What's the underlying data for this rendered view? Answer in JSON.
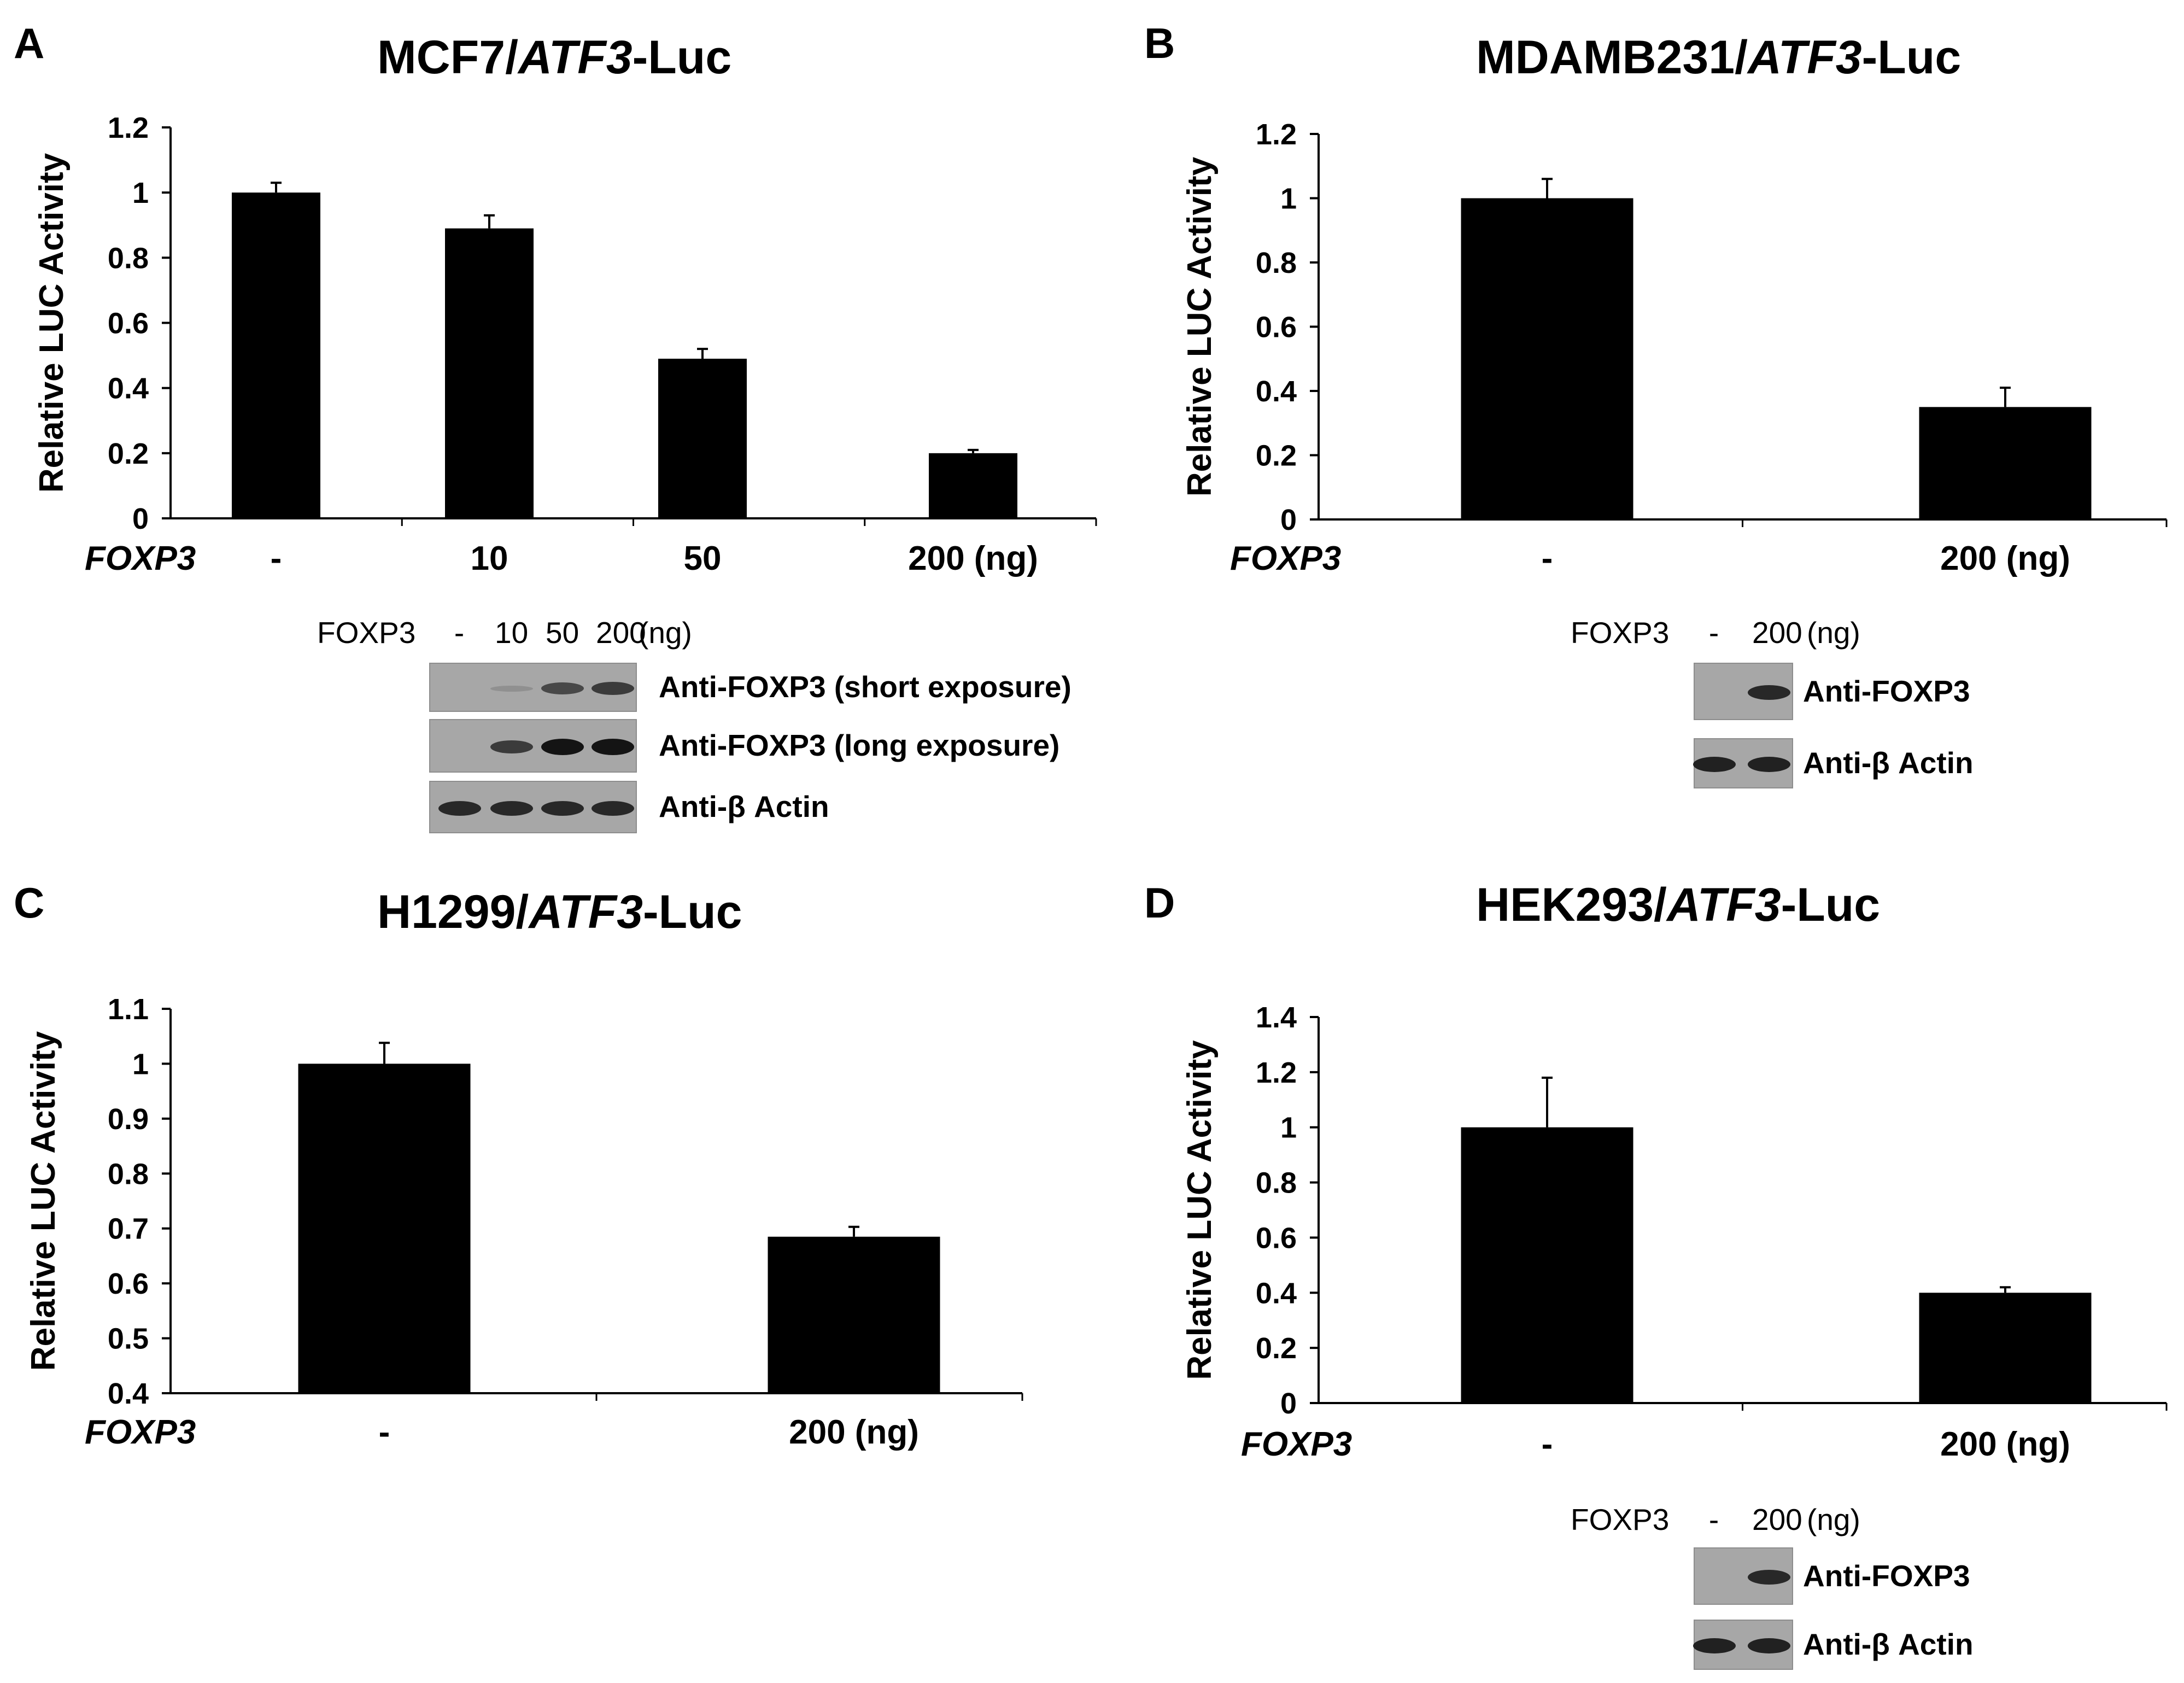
{
  "panels": [
    {
      "letter": "A",
      "title_prefix": "MCF7/",
      "title_italic": "ATF3",
      "title_suffix": "-Luc",
      "treatment_label": "FOXP3",
      "blot": {
        "header_label": "FOXP3",
        "lanes": [
          "-",
          "10",
          "50",
          "200"
        ],
        "unit": "(ng)",
        "strips": [
          {
            "label": "Anti-FOXP3 (short exposure)",
            "band_intensity": [
              0,
              0.05,
              0.6,
              0.7
            ]
          },
          {
            "label": "Anti-FOXP3 (long exposure)",
            "band_intensity": [
              0,
              0.7,
              1.0,
              1.0
            ]
          },
          {
            "label": "Anti-β Actin",
            "band_intensity": [
              0.85,
              0.85,
              0.85,
              0.85
            ]
          }
        ]
      }
    },
    {
      "letter": "B",
      "title_prefix": "MDAMB231/",
      "title_italic": "ATF3",
      "title_suffix": "-Luc",
      "treatment_label": "FOXP3",
      "blot": {
        "header_label": "FOXP3",
        "lanes": [
          "-",
          "200"
        ],
        "unit": "(ng)",
        "strips": [
          {
            "label": "Anti-FOXP3",
            "band_intensity": [
              0,
              0.85
            ]
          },
          {
            "label": "Anti-β Actin",
            "band_intensity": [
              0.9,
              0.9
            ]
          }
        ]
      }
    },
    {
      "letter": "C",
      "title_prefix": "H1299/",
      "title_italic": "ATF3",
      "title_suffix": "-Luc",
      "treatment_label": "FOXP3",
      "blot": null
    },
    {
      "letter": "D",
      "title_prefix": "HEK293/",
      "title_italic": "ATF3",
      "title_suffix": "-Luc",
      "treatment_label": "FOXP3",
      "blot": {
        "header_label": "FOXP3",
        "lanes": [
          "-",
          "200"
        ],
        "unit": "(ng)",
        "strips": [
          {
            "label": "Anti-FOXP3",
            "band_intensity": [
              0,
              0.85
            ]
          },
          {
            "label": "Anti-β Actin",
            "band_intensity": [
              0.9,
              0.9
            ]
          }
        ]
      }
    }
  ],
  "chart_data": [
    {
      "type": "bar",
      "title": "MCF7/ATF3-Luc",
      "ylabel": "Relative LUC Activity",
      "xlabel": "FOXP3",
      "categories": [
        "-",
        "10",
        "50",
        "200 (ng)"
      ],
      "values": [
        1.0,
        0.89,
        0.49,
        0.2
      ],
      "errors": [
        0.03,
        0.04,
        0.03,
        0.01
      ],
      "ylim": [
        0,
        1.2
      ],
      "yticks": [
        "0",
        "0.2",
        "0.4",
        "0.6",
        "0.8",
        "1",
        "1.2"
      ],
      "bar_color": "#000000"
    },
    {
      "type": "bar",
      "title": "MDAMB231/ATF3-Luc",
      "ylabel": "Relative LUC Activity",
      "xlabel": "FOXP3",
      "categories": [
        "-",
        "200 (ng)"
      ],
      "values": [
        1.0,
        0.35
      ],
      "errors": [
        0.06,
        0.06
      ],
      "ylim": [
        0,
        1.2
      ],
      "yticks": [
        "0",
        "0.2",
        "0.4",
        "0.6",
        "0.8",
        "1",
        "1.2"
      ],
      "bar_color": "#000000"
    },
    {
      "type": "bar",
      "title": "H1299/ATF3-Luc",
      "ylabel": "Relative LUC Activity",
      "xlabel": "FOXP3",
      "categories": [
        "-",
        "200 (ng)"
      ],
      "values": [
        1.0,
        0.685
      ],
      "errors": [
        0.038,
        0.018
      ],
      "ylim": [
        0.4,
        1.1
      ],
      "yticks": [
        "0.4",
        "0.5",
        "0.6",
        "0.7",
        "0.8",
        "0.9",
        "1",
        "1.1"
      ],
      "bar_color": "#000000"
    },
    {
      "type": "bar",
      "title": "HEK293/ATF3-Luc",
      "ylabel": "Relative LUC Activity",
      "xlabel": "FOXP3",
      "categories": [
        "-",
        "200 (ng)"
      ],
      "values": [
        1.0,
        0.4
      ],
      "errors": [
        0.18,
        0.02
      ],
      "ylim": [
        0,
        1.4
      ],
      "yticks": [
        "0",
        "0.2",
        "0.4",
        "0.6",
        "0.8",
        "1",
        "1.2",
        "1.4"
      ],
      "bar_color": "#000000"
    }
  ]
}
